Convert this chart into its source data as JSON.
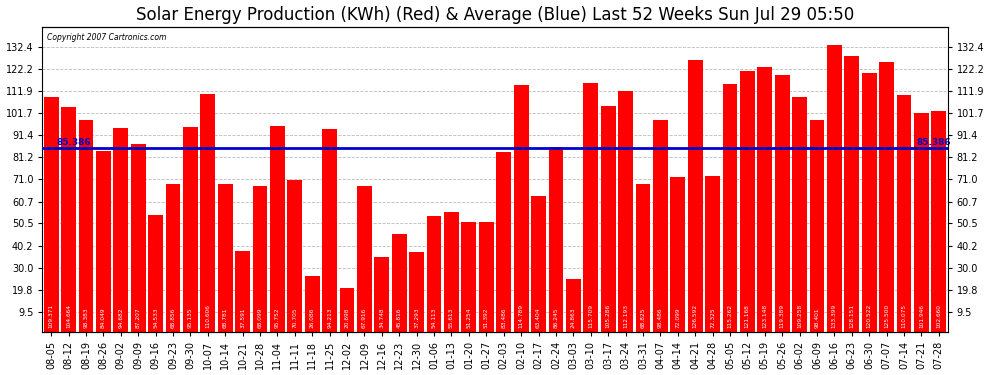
{
  "title": "Solar Energy Production (KWh) (Red) & Average (Blue) Last 52 Weeks Sun Jul 29 05:50",
  "copyright": "Copyright 2007 Cartronics.com",
  "average": 85.386,
  "bar_color": "#ff0000",
  "avg_line_color": "#0000cc",
  "background_color": "#ffffff",
  "plot_bg_color": "#ffffff",
  "grid_color": "#bbbbbb",
  "categories": [
    "08-05",
    "08-12",
    "08-19",
    "08-26",
    "09-02",
    "09-09",
    "09-16",
    "09-23",
    "09-30",
    "10-07",
    "10-14",
    "10-21",
    "10-28",
    "11-04",
    "11-11",
    "11-18",
    "11-25",
    "12-02",
    "12-09",
    "12-16",
    "12-23",
    "12-30",
    "01-06",
    "01-13",
    "01-20",
    "01-27",
    "02-03",
    "02-10",
    "02-17",
    "02-24",
    "03-03",
    "03-10",
    "03-17",
    "03-24",
    "03-31",
    "04-07",
    "04-14",
    "04-21",
    "04-28",
    "05-05",
    "05-12",
    "05-19",
    "05-26",
    "06-02",
    "06-09",
    "06-16",
    "06-23",
    "06-30",
    "07-07",
    "07-14",
    "07-21",
    "07-28"
  ],
  "values": [
    109.371,
    104.664,
    98.383,
    84.049,
    94.682,
    87.207,
    54.533,
    68.856,
    95.135,
    110.606,
    68.781,
    37.591,
    68.099,
    95.752,
    70.705,
    26.086,
    94.213,
    20.698,
    67.916,
    34.748,
    45.816,
    37.293,
    54.113,
    55.613,
    51.254,
    51.392,
    83.486,
    114.789,
    63.404,
    86.245,
    24.863,
    115.709,
    105.286,
    112.193,
    68.825,
    98.486,
    72.099,
    126.592,
    72.325,
    115.262,
    121.168,
    123.148,
    119.389,
    109.258,
    98.401,
    133.399,
    128.151,
    120.522,
    125.5,
    110.075,
    101.946,
    102.66
  ],
  "ylim": [
    0,
    142
  ],
  "yticks": [
    9.5,
    19.8,
    30.0,
    40.2,
    50.5,
    60.7,
    71.0,
    81.2,
    91.4,
    101.7,
    111.9,
    122.2,
    132.4
  ],
  "title_fontsize": 12,
  "tick_fontsize": 7,
  "label_fontsize": 5.0
}
